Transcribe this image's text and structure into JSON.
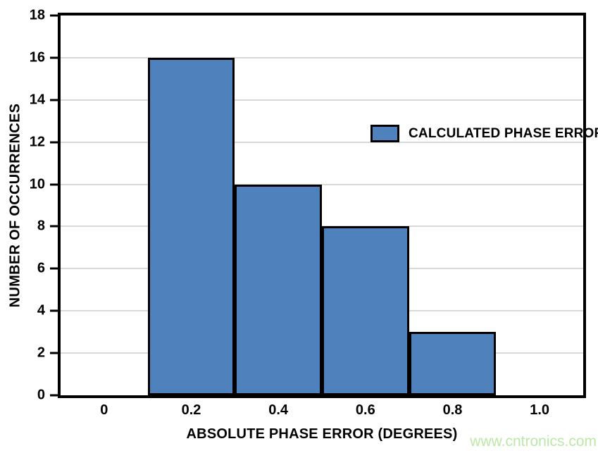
{
  "chart_data": {
    "type": "bar",
    "title": "",
    "xlabel": "ABSOLUTE PHASE ERROR (DEGREES)",
    "ylabel": "NUMBER OF OCCURRENCES",
    "categories": [
      "0",
      "0.2",
      "0.4",
      "0.6",
      "0.8",
      "1.0"
    ],
    "values": [
      0,
      16,
      10,
      8,
      3,
      0
    ],
    "ylim": [
      0,
      18
    ],
    "yticks": [
      0,
      2,
      4,
      6,
      8,
      10,
      12,
      14,
      16,
      18
    ],
    "grid": true,
    "legend": {
      "label": "CALCULATED PHASE ERROR",
      "position": "upper-right-inside"
    },
    "bar_color": "#4f81bd",
    "bar_border_color": "#000000",
    "gridline_color": "#d9d9d9",
    "frame_color": "#000000",
    "background_color": "#ffffff"
  },
  "watermark": {
    "text": "www.cntronics.com",
    "color": "#bce8a8"
  }
}
